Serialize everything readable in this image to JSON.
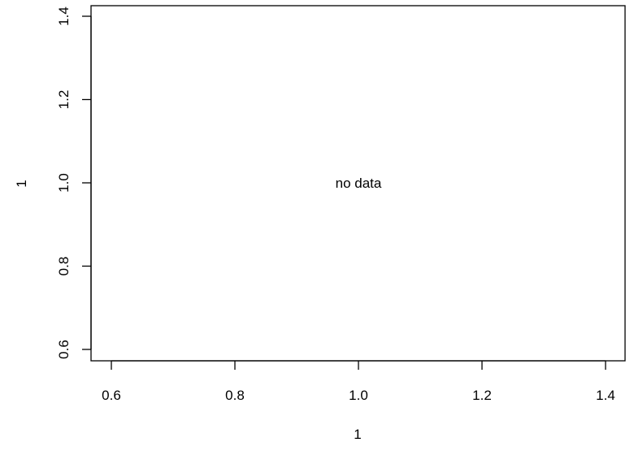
{
  "chart_data": {
    "type": "scatter",
    "title": "",
    "xlabel": "1",
    "ylabel": "1",
    "xlim": [
      0.6,
      1.4
    ],
    "ylim": [
      0.6,
      1.4
    ],
    "x_ticks": [
      "0.6",
      "0.8",
      "1.0",
      "1.2",
      "1.4"
    ],
    "y_ticks": [
      "0.6",
      "0.8",
      "1.0",
      "1.2",
      "1.4"
    ],
    "series": [],
    "annotation": {
      "text": "no data",
      "x": 1.0,
      "y": 1.0
    },
    "grid": false,
    "legend": "none"
  }
}
